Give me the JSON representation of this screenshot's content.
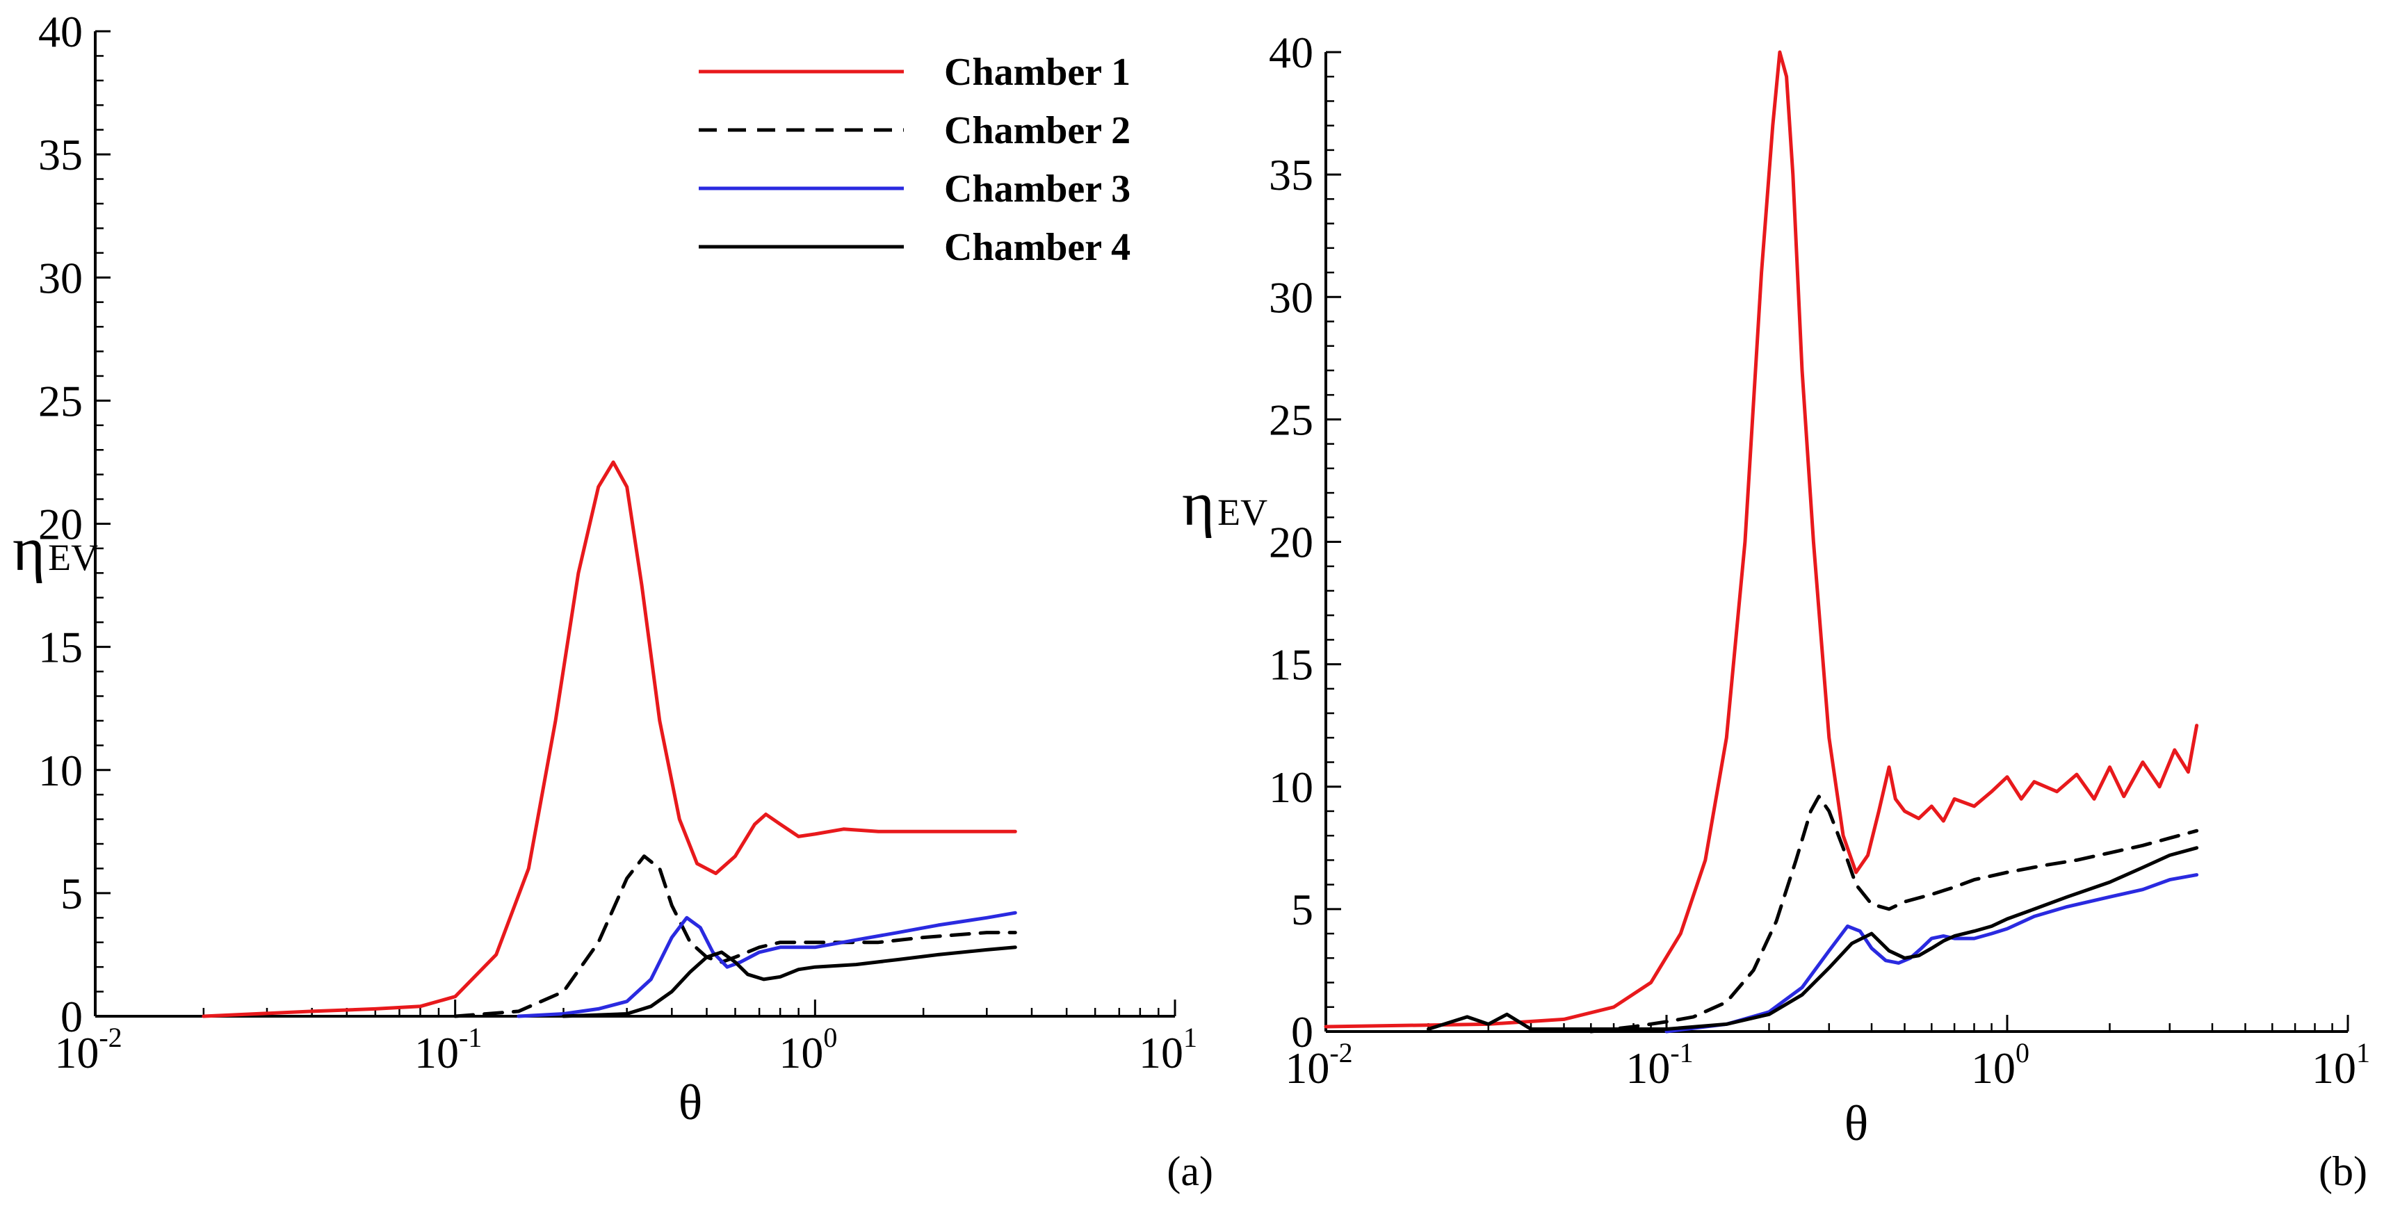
{
  "chart_data": [
    {
      "panel_label": "(a)",
      "type": "line",
      "xscale": "log",
      "xlim": [
        0.01,
        10
      ],
      "ylim": [
        0,
        40
      ],
      "xlabel": "θ",
      "ylabel_main": "η",
      "ylabel_sub": "EV",
      "xticks": [
        {
          "base": "10",
          "exp": "-2",
          "value": 0.01
        },
        {
          "base": "10",
          "exp": "-1",
          "value": 0.1
        },
        {
          "base": "10",
          "exp": "0",
          "value": 1
        },
        {
          "base": "10",
          "exp": "1",
          "value": 10
        }
      ],
      "yticks": [
        "0",
        "5",
        "10",
        "15",
        "20",
        "25",
        "30",
        "35",
        "40"
      ],
      "legend": {
        "position": "top-right",
        "entries": [
          {
            "label": "Chamber 1",
            "color": "#e8191c",
            "dash": "solid"
          },
          {
            "label": "Chamber 2",
            "color": "#000000",
            "dash": "dashed"
          },
          {
            "label": "Chamber 3",
            "color": "#2a2ae0",
            "dash": "solid"
          },
          {
            "label": "Chamber 4",
            "color": "#000000",
            "dash": "solid"
          }
        ]
      },
      "series": [
        {
          "name": "Chamber 1",
          "color": "#e8191c",
          "dash": "solid",
          "x": [
            0.02,
            0.04,
            0.06,
            0.08,
            0.1,
            0.13,
            0.16,
            0.19,
            0.22,
            0.25,
            0.275,
            0.3,
            0.33,
            0.37,
            0.42,
            0.47,
            0.53,
            0.6,
            0.68,
            0.73,
            0.8,
            0.9,
            1.0,
            1.2,
            1.5,
            2.0,
            2.5,
            3.0,
            3.6
          ],
          "y": [
            0,
            0.2,
            0.3,
            0.4,
            0.8,
            2.5,
            6,
            12,
            18,
            21.5,
            22.5,
            21.5,
            17.5,
            12,
            8,
            6.2,
            5.8,
            6.5,
            7.8,
            8.2,
            7.8,
            7.3,
            7.4,
            7.6,
            7.5,
            7.5,
            7.5,
            7.5,
            7.5
          ]
        },
        {
          "name": "Chamber 2",
          "color": "#000000",
          "dash": "dashed",
          "x": [
            0.1,
            0.15,
            0.2,
            0.25,
            0.3,
            0.335,
            0.37,
            0.4,
            0.45,
            0.5,
            0.55,
            0.6,
            0.7,
            0.8,
            1.0,
            1.5,
            2.0,
            3.0,
            3.6
          ],
          "y": [
            0,
            0.2,
            1.0,
            3.0,
            5.6,
            6.5,
            6.0,
            4.5,
            3.0,
            2.4,
            2.2,
            2.4,
            2.8,
            3.0,
            3.0,
            3.0,
            3.2,
            3.4,
            3.4
          ]
        },
        {
          "name": "Chamber 3",
          "color": "#2a2ae0",
          "dash": "solid",
          "x": [
            0.15,
            0.2,
            0.25,
            0.3,
            0.35,
            0.4,
            0.44,
            0.48,
            0.52,
            0.57,
            0.62,
            0.7,
            0.8,
            1.0,
            1.3,
            1.7,
            2.2,
            3.0,
            3.6
          ],
          "y": [
            0,
            0.1,
            0.3,
            0.6,
            1.5,
            3.2,
            4.0,
            3.6,
            2.6,
            2.0,
            2.2,
            2.6,
            2.8,
            2.8,
            3.1,
            3.4,
            3.7,
            4.0,
            4.2
          ]
        },
        {
          "name": "Chamber 4",
          "color": "#000000",
          "dash": "solid",
          "x": [
            0.2,
            0.3,
            0.35,
            0.4,
            0.45,
            0.5,
            0.55,
            0.6,
            0.65,
            0.72,
            0.8,
            0.9,
            1.0,
            1.3,
            1.7,
            2.2,
            3.0,
            3.6
          ],
          "y": [
            0,
            0.1,
            0.4,
            1.0,
            1.8,
            2.4,
            2.6,
            2.2,
            1.7,
            1.5,
            1.6,
            1.9,
            2.0,
            2.1,
            2.3,
            2.5,
            2.7,
            2.8
          ]
        }
      ]
    },
    {
      "panel_label": "(b)",
      "type": "line",
      "xscale": "log",
      "xlim": [
        0.01,
        10
      ],
      "ylim": [
        0,
        40
      ],
      "xlabel": "θ",
      "ylabel_main": "η",
      "ylabel_sub": "EV",
      "xticks": [
        {
          "base": "10",
          "exp": "-2",
          "value": 0.01
        },
        {
          "base": "10",
          "exp": "-1",
          "value": 0.1
        },
        {
          "base": "10",
          "exp": "0",
          "value": 1
        },
        {
          "base": "10",
          "exp": "1",
          "value": 10
        }
      ],
      "yticks": [
        "0",
        "5",
        "10",
        "15",
        "20",
        "25",
        "30",
        "35",
        "40"
      ],
      "series": [
        {
          "name": "Chamber 1",
          "color": "#e8191c",
          "dash": "solid",
          "x": [
            0.01,
            0.03,
            0.05,
            0.07,
            0.09,
            0.11,
            0.13,
            0.15,
            0.17,
            0.19,
            0.205,
            0.215,
            0.225,
            0.235,
            0.25,
            0.27,
            0.3,
            0.33,
            0.36,
            0.39,
            0.42,
            0.45,
            0.47,
            0.5,
            0.55,
            0.6,
            0.65,
            0.7,
            0.8,
            0.9,
            1.0,
            1.1,
            1.2,
            1.4,
            1.6,
            1.8,
            2.0,
            2.2,
            2.5,
            2.8,
            3.1,
            3.4,
            3.6
          ],
          "y": [
            0.2,
            0.3,
            0.5,
            1,
            2,
            4,
            7,
            12,
            20,
            31,
            37,
            40,
            39,
            35,
            27,
            20,
            12,
            8,
            6.5,
            7.2,
            9,
            10.8,
            9.5,
            9,
            8.7,
            9.2,
            8.6,
            9.5,
            9.2,
            9.8,
            10.4,
            9.5,
            10.2,
            9.8,
            10.5,
            9.5,
            10.8,
            9.6,
            11,
            10,
            11.5,
            10.6,
            12.5
          ]
        },
        {
          "name": "Chamber 2",
          "color": "#000000",
          "dash": "dashed",
          "x": [
            0.06,
            0.08,
            0.1,
            0.12,
            0.15,
            0.18,
            0.21,
            0.24,
            0.265,
            0.28,
            0.3,
            0.33,
            0.36,
            0.4,
            0.45,
            0.5,
            0.6,
            0.7,
            0.8,
            1.0,
            1.3,
            1.6,
            2.0,
            2.5,
            3.0,
            3.6
          ],
          "y": [
            0,
            0.2,
            0.4,
            0.6,
            1.2,
            2.5,
            4.5,
            7,
            9,
            9.6,
            9,
            7.5,
            6,
            5.2,
            5.0,
            5.3,
            5.6,
            5.9,
            6.2,
            6.5,
            6.8,
            7.0,
            7.3,
            7.6,
            7.9,
            8.2
          ]
        },
        {
          "name": "Chamber 3",
          "color": "#2a2ae0",
          "dash": "solid",
          "x": [
            0.1,
            0.15,
            0.2,
            0.25,
            0.3,
            0.34,
            0.37,
            0.4,
            0.44,
            0.48,
            0.52,
            0.56,
            0.6,
            0.65,
            0.7,
            0.8,
            0.9,
            1.0,
            1.2,
            1.5,
            2.0,
            2.5,
            3.0,
            3.6
          ],
          "y": [
            0,
            0.3,
            0.8,
            1.8,
            3.3,
            4.3,
            4.1,
            3.4,
            2.9,
            2.8,
            3.0,
            3.4,
            3.8,
            3.9,
            3.8,
            3.8,
            4.0,
            4.2,
            4.7,
            5.1,
            5.5,
            5.8,
            6.2,
            6.4
          ]
        },
        {
          "name": "Chamber 4",
          "color": "#000000",
          "dash": "solid",
          "x": [
            0.02,
            0.026,
            0.03,
            0.034,
            0.04,
            0.06,
            0.1,
            0.15,
            0.2,
            0.25,
            0.3,
            0.35,
            0.4,
            0.45,
            0.5,
            0.55,
            0.6,
            0.65,
            0.7,
            0.8,
            0.9,
            1.0,
            1.2,
            1.5,
            2.0,
            2.5,
            3.0,
            3.6
          ],
          "y": [
            0.1,
            0.6,
            0.3,
            0.7,
            0.1,
            0.1,
            0.1,
            0.3,
            0.7,
            1.5,
            2.6,
            3.6,
            4.0,
            3.3,
            3.0,
            3.1,
            3.4,
            3.7,
            3.9,
            4.1,
            4.3,
            4.6,
            5.0,
            5.5,
            6.1,
            6.7,
            7.2,
            7.5
          ]
        }
      ]
    }
  ]
}
